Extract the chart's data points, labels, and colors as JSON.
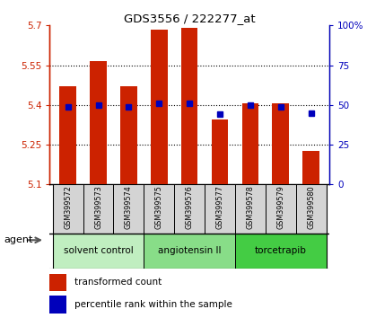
{
  "title": "GDS3556 / 222277_at",
  "samples": [
    "GSM399572",
    "GSM399573",
    "GSM399574",
    "GSM399575",
    "GSM399576",
    "GSM399577",
    "GSM399578",
    "GSM399579",
    "GSM399580"
  ],
  "transformed_counts": [
    5.47,
    5.565,
    5.47,
    5.685,
    5.69,
    5.345,
    5.405,
    5.405,
    5.225
  ],
  "percentile_ranks": [
    49,
    50,
    49,
    51,
    51,
    44,
    50,
    49,
    45
  ],
  "bar_bottom": 5.1,
  "ylim_left": [
    5.1,
    5.7
  ],
  "ylim_right": [
    0,
    100
  ],
  "yticks_left": [
    5.1,
    5.25,
    5.4,
    5.55,
    5.7
  ],
  "yticks_right": [
    0,
    25,
    50,
    75,
    100
  ],
  "ytick_labels_left": [
    "5.1",
    "5.25",
    "5.4",
    "5.55",
    "5.7"
  ],
  "ytick_labels_right": [
    "0",
    "25",
    "50",
    "75",
    "100%"
  ],
  "groups": [
    {
      "label": "solvent control",
      "samples": [
        0,
        1,
        2
      ],
      "color": "#c0eec0"
    },
    {
      "label": "angiotensin II",
      "samples": [
        3,
        4,
        5
      ],
      "color": "#88dd88"
    },
    {
      "label": "torcetrapib",
      "samples": [
        6,
        7,
        8
      ],
      "color": "#44cc44"
    }
  ],
  "bar_color": "#cc2200",
  "dot_color": "#0000bb",
  "bar_width": 0.55,
  "legend_items": [
    {
      "label": "transformed count",
      "color": "#cc2200"
    },
    {
      "label": "percentile rank within the sample",
      "color": "#0000bb"
    }
  ],
  "agent_label": "agent",
  "left_axis_color": "#cc2200",
  "right_axis_color": "#0000bb",
  "fig_width": 4.1,
  "fig_height": 3.54,
  "dpi": 100
}
